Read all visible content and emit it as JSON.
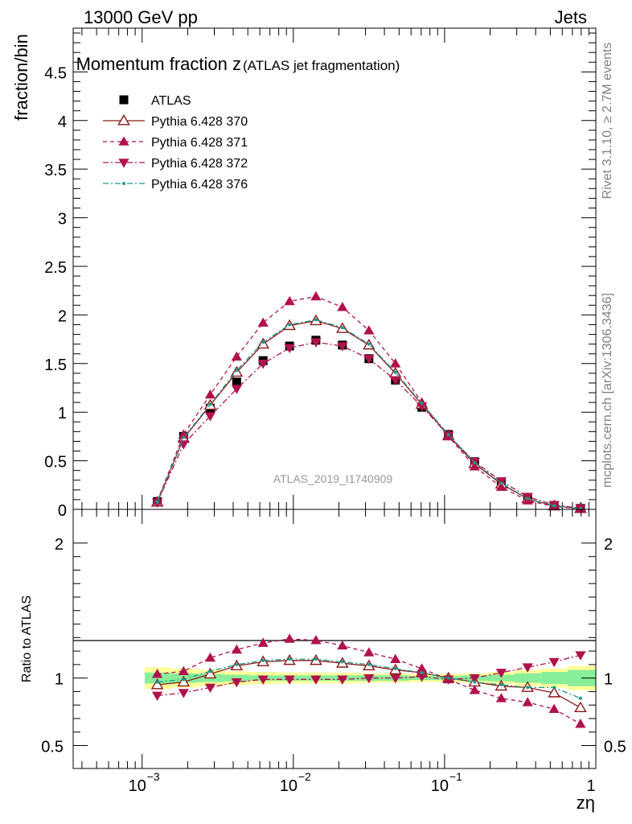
{
  "header": {
    "left": "13000 GeV pp",
    "right": "Jets"
  },
  "side_text": {
    "rivet": "Rivet 3.1.10, ≥ 2.7M events",
    "mcplots": "mcplots.cern.ch [arXiv:1306.3436]"
  },
  "chart_data": [
    {
      "type": "scatter",
      "panel": "main",
      "title": "Momentum fraction z",
      "title_suffix": "(ATLAS jet fragmentation)",
      "ylabel": "fraction/bin",
      "xscale": "log",
      "xlim": [
        0.00035,
        1.0
      ],
      "ylim": [
        0,
        4.95
      ],
      "yticks": [
        "0",
        "0.5",
        "1",
        "1.5",
        "2",
        "2.5",
        "3",
        "3.5",
        "4",
        "4.5"
      ],
      "watermark": "ATLAS_2019_I1740909",
      "legend_position": "top-left",
      "x": [
        0.00126,
        0.00188,
        0.00282,
        0.00422,
        0.00631,
        0.00944,
        0.0141,
        0.0211,
        0.0316,
        0.0473,
        0.0707,
        0.106,
        0.158,
        0.237,
        0.354,
        0.53,
        0.792
      ],
      "series": [
        {
          "name": "ATLAS",
          "color": "#000000",
          "marker": "square",
          "line": "none",
          "values": [
            0.08,
            0.75,
            1.04,
            1.31,
            1.53,
            1.68,
            1.74,
            1.69,
            1.55,
            1.33,
            1.05,
            0.77,
            0.49,
            0.28,
            0.12,
            0.04,
            0.01
          ]
        },
        {
          "name": "Pythia 6.428 370",
          "color": "#8b1a1a",
          "marker": "triangle-up-open",
          "line": "solid",
          "values": [
            0.075,
            0.73,
            1.07,
            1.41,
            1.7,
            1.89,
            1.94,
            1.86,
            1.69,
            1.4,
            1.08,
            0.76,
            0.47,
            0.26,
            0.11,
            0.035,
            0.008
          ]
        },
        {
          "name": "Pythia 6.428 371",
          "color": "#b0124c",
          "marker": "triangle-up",
          "line": "dashed",
          "values": [
            0.085,
            0.77,
            1.18,
            1.57,
            1.92,
            2.14,
            2.19,
            2.08,
            1.84,
            1.5,
            1.1,
            0.75,
            0.44,
            0.23,
            0.09,
            0.03,
            0.006
          ]
        },
        {
          "name": "Pythia 6.428 372",
          "color": "#b0124c",
          "marker": "triangle-down",
          "line": "dashdot",
          "values": [
            0.07,
            0.67,
            0.96,
            1.24,
            1.5,
            1.66,
            1.72,
            1.68,
            1.55,
            1.33,
            1.06,
            0.76,
            0.49,
            0.29,
            0.13,
            0.045,
            0.012
          ]
        },
        {
          "name": "Pythia 6.428 376",
          "color": "#1a9a8a",
          "marker": "dot",
          "line": "dashdot",
          "values": [
            0.075,
            0.74,
            1.08,
            1.43,
            1.72,
            1.9,
            1.95,
            1.87,
            1.7,
            1.41,
            1.09,
            0.77,
            0.48,
            0.27,
            0.11,
            0.037,
            0.009
          ]
        }
      ]
    },
    {
      "type": "line",
      "panel": "ratio",
      "ylabel": "Ratio to ATLAS",
      "xlabel": "zη",
      "xscale": "log",
      "xlim": [
        0.00035,
        1.0
      ],
      "ylim": [
        0.33,
        2.25
      ],
      "yticks": [
        "0.5",
        "1",
        "2"
      ],
      "xticks": [
        {
          "value": 0.001,
          "base": "10",
          "exp": "−3"
        },
        {
          "value": 0.01,
          "base": "10",
          "exp": "−2"
        },
        {
          "value": 0.1,
          "base": "10",
          "exp": "−1"
        },
        {
          "value": 1,
          "base": "1",
          "exp": ""
        }
      ],
      "x": [
        0.00126,
        0.00188,
        0.00282,
        0.00422,
        0.00631,
        0.00944,
        0.0141,
        0.0211,
        0.0316,
        0.0473,
        0.0707,
        0.106,
        0.158,
        0.237,
        0.354,
        0.53,
        0.792
      ],
      "bin_edges": [
        0.00104,
        0.00155,
        0.00232,
        0.00347,
        0.00519,
        0.00776,
        0.0116,
        0.0174,
        0.026,
        0.0389,
        0.0582,
        0.087,
        0.13,
        0.195,
        0.291,
        0.436,
        0.652,
        1.0
      ],
      "band_outer": [
        [
          0.92,
          1.08
        ],
        [
          0.93,
          1.07
        ],
        [
          0.94,
          1.06
        ],
        [
          0.95,
          1.05
        ],
        [
          0.955,
          1.045
        ],
        [
          0.96,
          1.04
        ],
        [
          0.96,
          1.04
        ],
        [
          0.96,
          1.04
        ],
        [
          0.965,
          1.035
        ],
        [
          0.965,
          1.035
        ],
        [
          0.97,
          1.03
        ],
        [
          0.97,
          1.03
        ],
        [
          0.965,
          1.035
        ],
        [
          0.955,
          1.045
        ],
        [
          0.94,
          1.06
        ],
        [
          0.93,
          1.07
        ],
        [
          0.91,
          1.09
        ]
      ],
      "band_inner": [
        [
          0.96,
          1.04
        ],
        [
          0.965,
          1.035
        ],
        [
          0.97,
          1.03
        ],
        [
          0.975,
          1.025
        ],
        [
          0.98,
          1.02
        ],
        [
          0.98,
          1.02
        ],
        [
          0.98,
          1.02
        ],
        [
          0.98,
          1.02
        ],
        [
          0.98,
          1.02
        ],
        [
          0.98,
          1.02
        ],
        [
          0.985,
          1.015
        ],
        [
          0.985,
          1.015
        ],
        [
          0.98,
          1.02
        ],
        [
          0.975,
          1.025
        ],
        [
          0.965,
          1.035
        ],
        [
          0.955,
          1.045
        ],
        [
          0.94,
          1.06
        ]
      ],
      "series": [
        {
          "name": "Pythia 6.428 370",
          "color": "#8b1a1a",
          "marker": "triangle-up-open",
          "line": "solid",
          "values": [
            0.95,
            0.97,
            1.03,
            1.09,
            1.12,
            1.13,
            1.13,
            1.11,
            1.09,
            1.06,
            1.04,
            1.0,
            0.97,
            0.94,
            0.93,
            0.89,
            0.78
          ]
        },
        {
          "name": "Pythia 6.428 371",
          "color": "#b0124c",
          "marker": "triangle-up",
          "line": "dashed",
          "values": [
            1.03,
            1.05,
            1.15,
            1.21,
            1.26,
            1.29,
            1.28,
            1.24,
            1.19,
            1.14,
            1.07,
            0.99,
            0.91,
            0.85,
            0.82,
            0.77,
            0.66
          ]
        },
        {
          "name": "Pythia 6.428 372",
          "color": "#b0124c",
          "marker": "triangle-down",
          "line": "dashdot",
          "values": [
            0.87,
            0.89,
            0.93,
            0.97,
            0.99,
            0.99,
            0.99,
            0.99,
            1.0,
            1.0,
            1.01,
            0.99,
            1.0,
            1.04,
            1.08,
            1.12,
            1.17
          ]
        },
        {
          "name": "Pythia 6.428 376",
          "color": "#1a9a8a",
          "marker": "dot",
          "line": "dashdot",
          "values": [
            0.97,
            0.99,
            1.05,
            1.1,
            1.13,
            1.14,
            1.14,
            1.12,
            1.1,
            1.07,
            1.04,
            1.0,
            0.97,
            0.95,
            0.93,
            0.93,
            0.85
          ]
        }
      ]
    }
  ]
}
